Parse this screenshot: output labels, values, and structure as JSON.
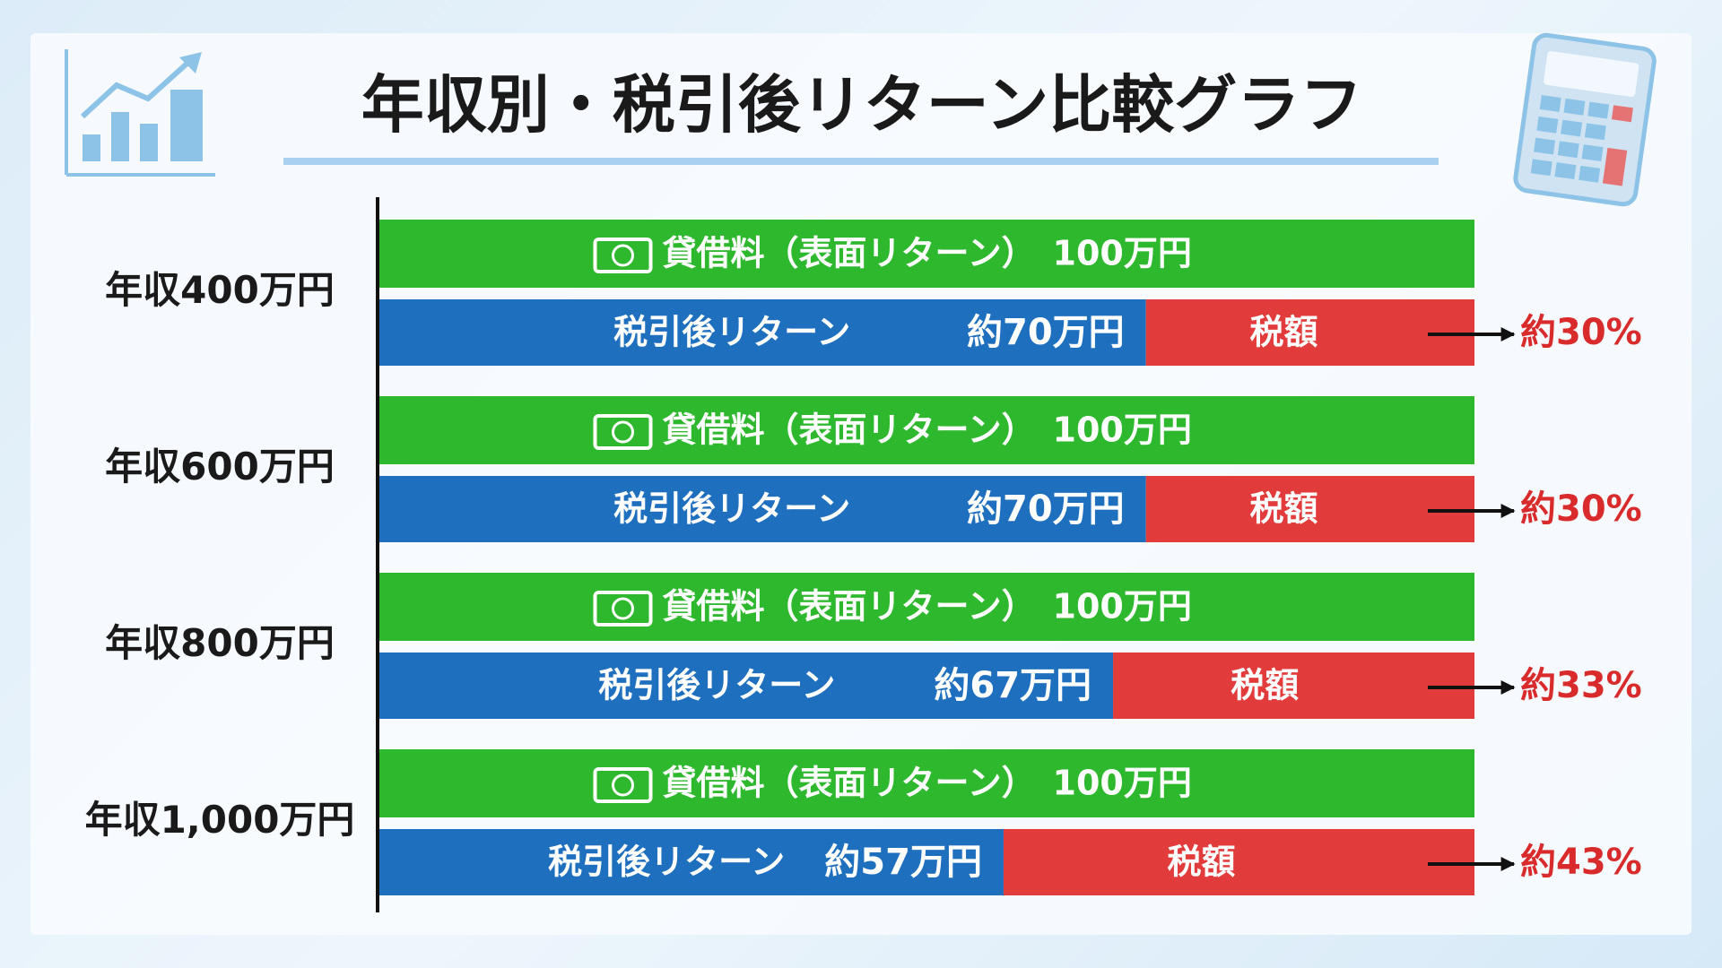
{
  "chart_data": {
    "type": "bar",
    "title": "年収別・税引後リターン比較グラフ",
    "categories": [
      "年収400万円",
      "年収600万円",
      "年収800万円",
      "年収1,000万円"
    ],
    "xlim": [
      0,
      100
    ],
    "series": [
      {
        "name": "貸借料（表面リターン）",
        "color": "#2eb82e",
        "values": [
          100,
          100,
          100,
          100
        ],
        "value_labels": [
          "100万円",
          "100万円",
          "100万円",
          "100万円"
        ]
      },
      {
        "name": "税引後リターン",
        "color": "#1f6fbf",
        "values": [
          70,
          70,
          67,
          57
        ],
        "value_labels": [
          "約70万円",
          "約70万円",
          "約67万円",
          "約57万円"
        ]
      },
      {
        "name": "税額",
        "color": "#e23b3b",
        "values": [
          30,
          30,
          33,
          43
        ],
        "value_labels": [
          "約30%",
          "約30%",
          "約33%",
          "約43%"
        ]
      }
    ]
  }
}
